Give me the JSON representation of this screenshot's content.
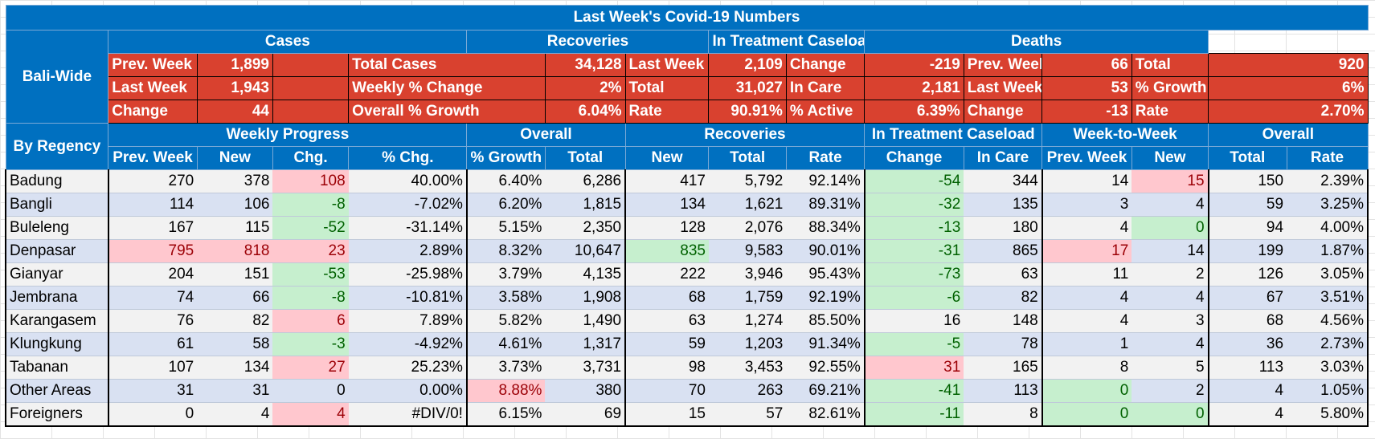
{
  "title": "Last Week's Covid-19 Numbers",
  "summary": {
    "row_label": "Bali-Wide",
    "groups": [
      "Cases",
      "Recoveries",
      "In Treatment Caseload",
      "Deaths"
    ],
    "rows": [
      [
        "Prev. Week",
        "1,899",
        "",
        "Total Cases",
        "34,128",
        "Last Week",
        "2,109",
        "Change",
        "-219",
        "Prev. Week",
        "66",
        "Total",
        "920"
      ],
      [
        "Last Week",
        "1,943",
        "",
        "Weekly % Change",
        "2%",
        "Total",
        "31,027",
        "In Care",
        "2,181",
        "Last Week",
        "53",
        "% Growth",
        "6%"
      ],
      [
        "Change",
        "44",
        "",
        "Overall % Growth",
        "6.04%",
        "Rate",
        "90.91%",
        "% Active",
        "6.39%",
        "Change",
        "-13",
        "Rate",
        "2.70%"
      ]
    ]
  },
  "regency": {
    "row_label": "By Regency",
    "groups": [
      "Weekly Progress",
      "Overall",
      "Recoveries",
      "In Treatment Caseload",
      "Week-to-Week",
      "Overall"
    ],
    "columns": [
      "Prev. Week",
      "New",
      "Chg.",
      "% Chg.",
      "% Growth",
      "Total",
      "New",
      "Total",
      "Rate",
      "Change",
      "In Care",
      "Prev. Week",
      "New",
      "Total",
      "Rate"
    ],
    "rows": [
      {
        "name": "Badung",
        "cells": [
          "270",
          "378",
          "108",
          "40.00%",
          "6.40%",
          "6,286",
          "417",
          "5,792",
          "92.14%",
          "-54",
          "344",
          "14",
          "15",
          "150",
          "2.39%"
        ],
        "hl": {
          "2": "red",
          "9": "green",
          "12": "red"
        }
      },
      {
        "name": "Bangli",
        "cells": [
          "114",
          "106",
          "-8",
          "-7.02%",
          "6.20%",
          "1,815",
          "134",
          "1,621",
          "89.31%",
          "-32",
          "135",
          "3",
          "4",
          "59",
          "3.25%"
        ],
        "hl": {
          "2": "green",
          "9": "green"
        }
      },
      {
        "name": "Buleleng",
        "cells": [
          "167",
          "115",
          "-52",
          "-31.14%",
          "5.15%",
          "2,350",
          "128",
          "2,076",
          "88.34%",
          "-13",
          "180",
          "4",
          "0",
          "94",
          "4.00%"
        ],
        "hl": {
          "2": "green",
          "9": "green",
          "12": "green"
        }
      },
      {
        "name": "Denpasar",
        "cells": [
          "795",
          "818",
          "23",
          "2.89%",
          "8.32%",
          "10,647",
          "835",
          "9,583",
          "90.01%",
          "-31",
          "865",
          "17",
          "14",
          "199",
          "1.87%"
        ],
        "hl": {
          "0": "red",
          "1": "red",
          "2": "red",
          "6": "green",
          "9": "green",
          "11": "red"
        }
      },
      {
        "name": "Gianyar",
        "cells": [
          "204",
          "151",
          "-53",
          "-25.98%",
          "3.79%",
          "4,135",
          "222",
          "3,946",
          "95.43%",
          "-73",
          "63",
          "11",
          "2",
          "126",
          "3.05%"
        ],
        "hl": {
          "2": "green",
          "9": "green"
        }
      },
      {
        "name": "Jembrana",
        "cells": [
          "74",
          "66",
          "-8",
          "-10.81%",
          "3.58%",
          "1,908",
          "68",
          "1,759",
          "92.19%",
          "-6",
          "82",
          "4",
          "4",
          "67",
          "3.51%"
        ],
        "hl": {
          "2": "green",
          "9": "green"
        }
      },
      {
        "name": "Karangasem",
        "cells": [
          "76",
          "82",
          "6",
          "7.89%",
          "5.82%",
          "1,490",
          "63",
          "1,274",
          "85.50%",
          "16",
          "148",
          "4",
          "3",
          "68",
          "4.56%"
        ],
        "hl": {
          "2": "red"
        }
      },
      {
        "name": "Klungkung",
        "cells": [
          "61",
          "58",
          "-3",
          "-4.92%",
          "4.61%",
          "1,317",
          "59",
          "1,203",
          "91.34%",
          "-5",
          "78",
          "1",
          "4",
          "36",
          "2.73%"
        ],
        "hl": {
          "2": "green",
          "9": "green"
        }
      },
      {
        "name": "Tabanan",
        "cells": [
          "107",
          "134",
          "27",
          "25.23%",
          "3.73%",
          "3,731",
          "98",
          "3,453",
          "92.55%",
          "31",
          "165",
          "8",
          "5",
          "113",
          "3.03%"
        ],
        "hl": {
          "2": "red",
          "9": "red"
        }
      },
      {
        "name": "Other Areas",
        "cells": [
          "31",
          "31",
          "0",
          "0.00%",
          "8.88%",
          "380",
          "70",
          "263",
          "69.21%",
          "-41",
          "113",
          "0",
          "2",
          "4",
          "1.05%"
        ],
        "hl": {
          "4": "red",
          "9": "green",
          "11": "green"
        }
      },
      {
        "name": "Foreigners",
        "cells": [
          "0",
          "4",
          "4",
          "#DIV/0!",
          "6.15%",
          "69",
          "15",
          "57",
          "82.61%",
          "-11",
          "8",
          "0",
          "0",
          "4",
          "5.80%"
        ],
        "hl": {
          "2": "red",
          "9": "green",
          "11": "green",
          "12": "green"
        }
      }
    ]
  },
  "colors": {
    "header_blue": "#0070c0",
    "summary_red": "#d9412f",
    "highlight_red": "#ffc7ce",
    "highlight_green": "#c6efce"
  }
}
